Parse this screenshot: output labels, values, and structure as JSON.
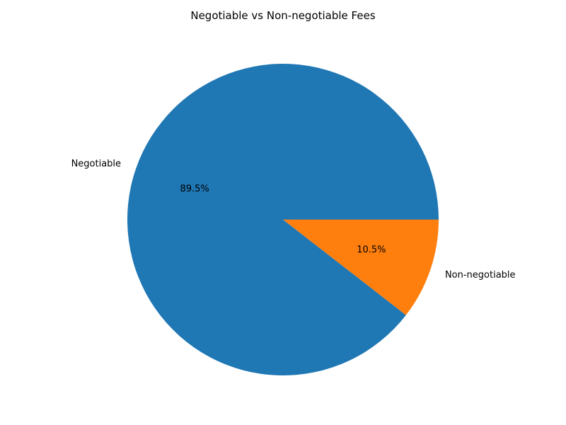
{
  "chart_data": {
    "type": "pie",
    "title": "Negotiable vs Non-negotiable Fees",
    "slices": [
      {
        "label": "Negotiable",
        "value": 89.5,
        "pct_label": "89.5%",
        "color": "#1f77b4"
      },
      {
        "label": "Non-negotiable",
        "value": 10.5,
        "pct_label": "10.5%",
        "color": "#ff7f0e"
      }
    ],
    "start_angle_deg": 0,
    "direction": "counterclockwise"
  }
}
